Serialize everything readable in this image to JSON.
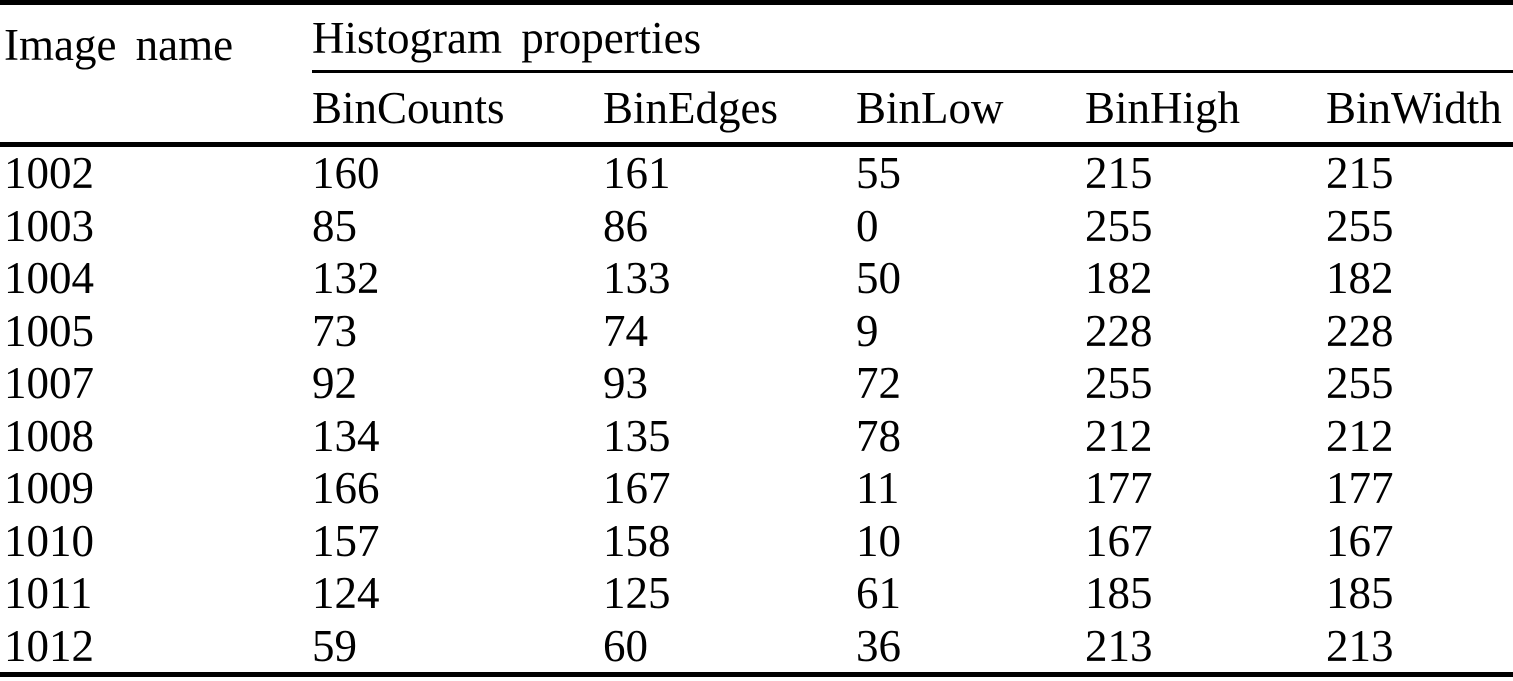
{
  "table": {
    "image_name_header": "Image name",
    "group_header": "Histogram properties",
    "columns": [
      "BinCounts",
      "BinEdges",
      "BinLow",
      "BinHigh",
      "BinWidth"
    ],
    "rows": [
      {
        "image": "1002",
        "values": [
          "160",
          "161",
          "55",
          "215",
          "215"
        ]
      },
      {
        "image": "1003",
        "values": [
          "85",
          "86",
          "0",
          "255",
          "255"
        ]
      },
      {
        "image": "1004",
        "values": [
          "132",
          "133",
          "50",
          "182",
          "182"
        ]
      },
      {
        "image": "1005",
        "values": [
          "73",
          "74",
          "9",
          "228",
          "228"
        ]
      },
      {
        "image": "1007",
        "values": [
          "92",
          "93",
          "72",
          "255",
          "255"
        ]
      },
      {
        "image": "1008",
        "values": [
          "134",
          "135",
          "78",
          "212",
          "212"
        ]
      },
      {
        "image": "1009",
        "values": [
          "166",
          "167",
          "11",
          "177",
          "177"
        ]
      },
      {
        "image": "1010",
        "values": [
          "157",
          "158",
          "10",
          "167",
          "167"
        ]
      },
      {
        "image": "1011",
        "values": [
          "124",
          "125",
          "61",
          "185",
          "185"
        ]
      },
      {
        "image": "1012",
        "values": [
          "59",
          "60",
          "36",
          "213",
          "213"
        ]
      }
    ],
    "colors": {
      "text": "#000000",
      "background": "#ffffff",
      "rule": "#000000"
    }
  }
}
